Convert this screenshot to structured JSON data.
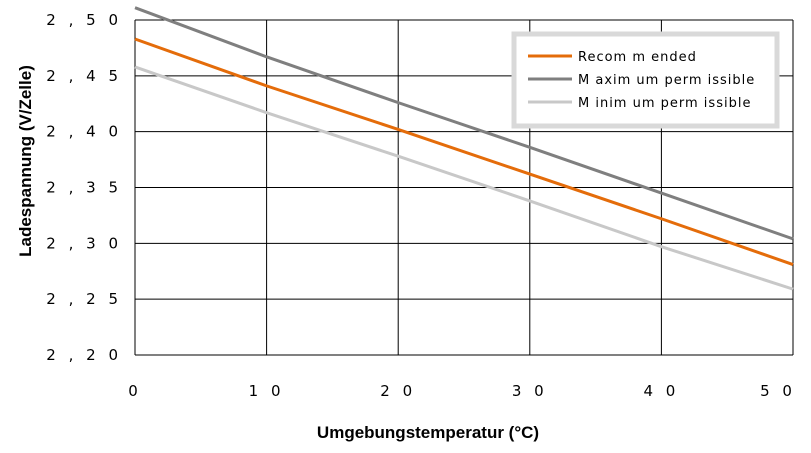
{
  "chart_data": {
    "type": "line",
    "title": "",
    "xlabel": "Umgebungstemperatur (°C)",
    "ylabel": "Ladespannung (V/Zelle)",
    "x": [
      0,
      10,
      20,
      30,
      40,
      50
    ],
    "x_tick_labels": [
      "0",
      "1 0",
      "2 0",
      "3 0",
      "4 0",
      "5 0"
    ],
    "y_tick_labels": [
      "2 , 5 0",
      "2 , 4 5",
      "2 , 4 0",
      "2 , 3 5",
      "2 , 3 0",
      "2 , 2 5",
      "2 , 2 0"
    ],
    "y_ticks": [
      2.5,
      2.45,
      2.4,
      2.35,
      2.3,
      2.25,
      2.2
    ],
    "xlim": [
      0,
      50
    ],
    "ylim": [
      2.2,
      2.5
    ],
    "grid": true,
    "legend_position": "top-right",
    "series": [
      {
        "name": "Recommended",
        "color": "#E46C0A",
        "values": [
          2.483,
          2.441,
          2.402,
          2.362,
          2.322,
          2.281
        ]
      },
      {
        "name": "Maximum permissible",
        "color": "#7F7F7F",
        "values": [
          2.511,
          2.467,
          2.426,
          2.386,
          2.345,
          2.304
        ]
      },
      {
        "name": "Minimum permissible",
        "color": "#C8C8C8",
        "values": [
          2.458,
          2.417,
          2.378,
          2.338,
          2.297,
          2.259
        ]
      }
    ],
    "legend_labels": [
      "Recom m ended",
      "M axim um  perm issible",
      "M inim um  perm issible"
    ]
  }
}
